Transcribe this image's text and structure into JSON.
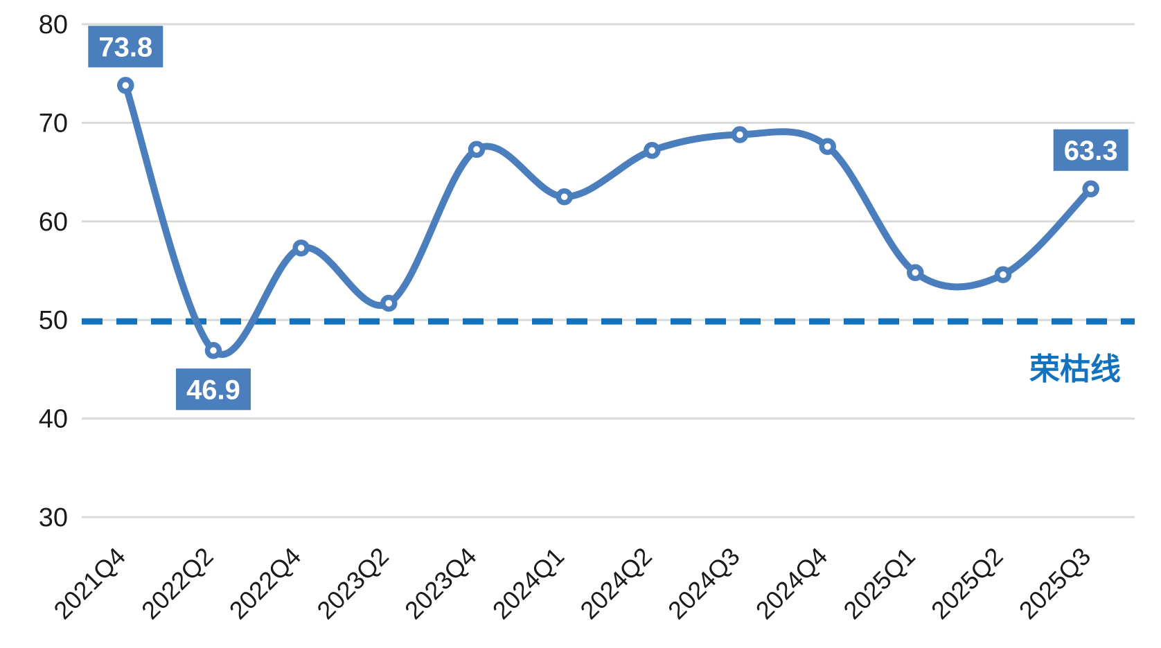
{
  "chart_data": {
    "type": "line",
    "smooth": true,
    "title": "",
    "xlabel": "",
    "ylabel": "",
    "categories": [
      "2021Q4",
      "2022Q2",
      "2022Q4",
      "2023Q2",
      "2023Q4",
      "2024Q1",
      "2024Q2",
      "2024Q3",
      "2024Q4",
      "2025Q1",
      "2025Q2",
      "2025Q3"
    ],
    "values": [
      73.8,
      46.9,
      57.3,
      51.7,
      67.3,
      62.5,
      67.2,
      68.8,
      67.6,
      54.8,
      54.6,
      63.3
    ],
    "ylim": [
      30,
      80
    ],
    "yticks": [
      30,
      40,
      50,
      60,
      70,
      80
    ],
    "grid": true,
    "legend": "none",
    "x_tick_rotation_deg": -45,
    "point_labels": [
      {
        "index": 0,
        "text": "73.8",
        "position": "above"
      },
      {
        "index": 1,
        "text": "46.9",
        "position": "below"
      },
      {
        "index": 11,
        "text": "63.3",
        "position": "above"
      }
    ],
    "reference_line": {
      "value": 50,
      "style": "dashed",
      "label": "荣枯线"
    },
    "colors": {
      "series": "#4a7ebc",
      "marker_fill": "#ffffff",
      "reference": "#1272be",
      "grid": "#d9d9d9",
      "tick_text": "#1a1a1a",
      "point_label_text": "#ffffff",
      "point_label_bg": "#4a7ebc",
      "background": "#ffffff"
    }
  }
}
